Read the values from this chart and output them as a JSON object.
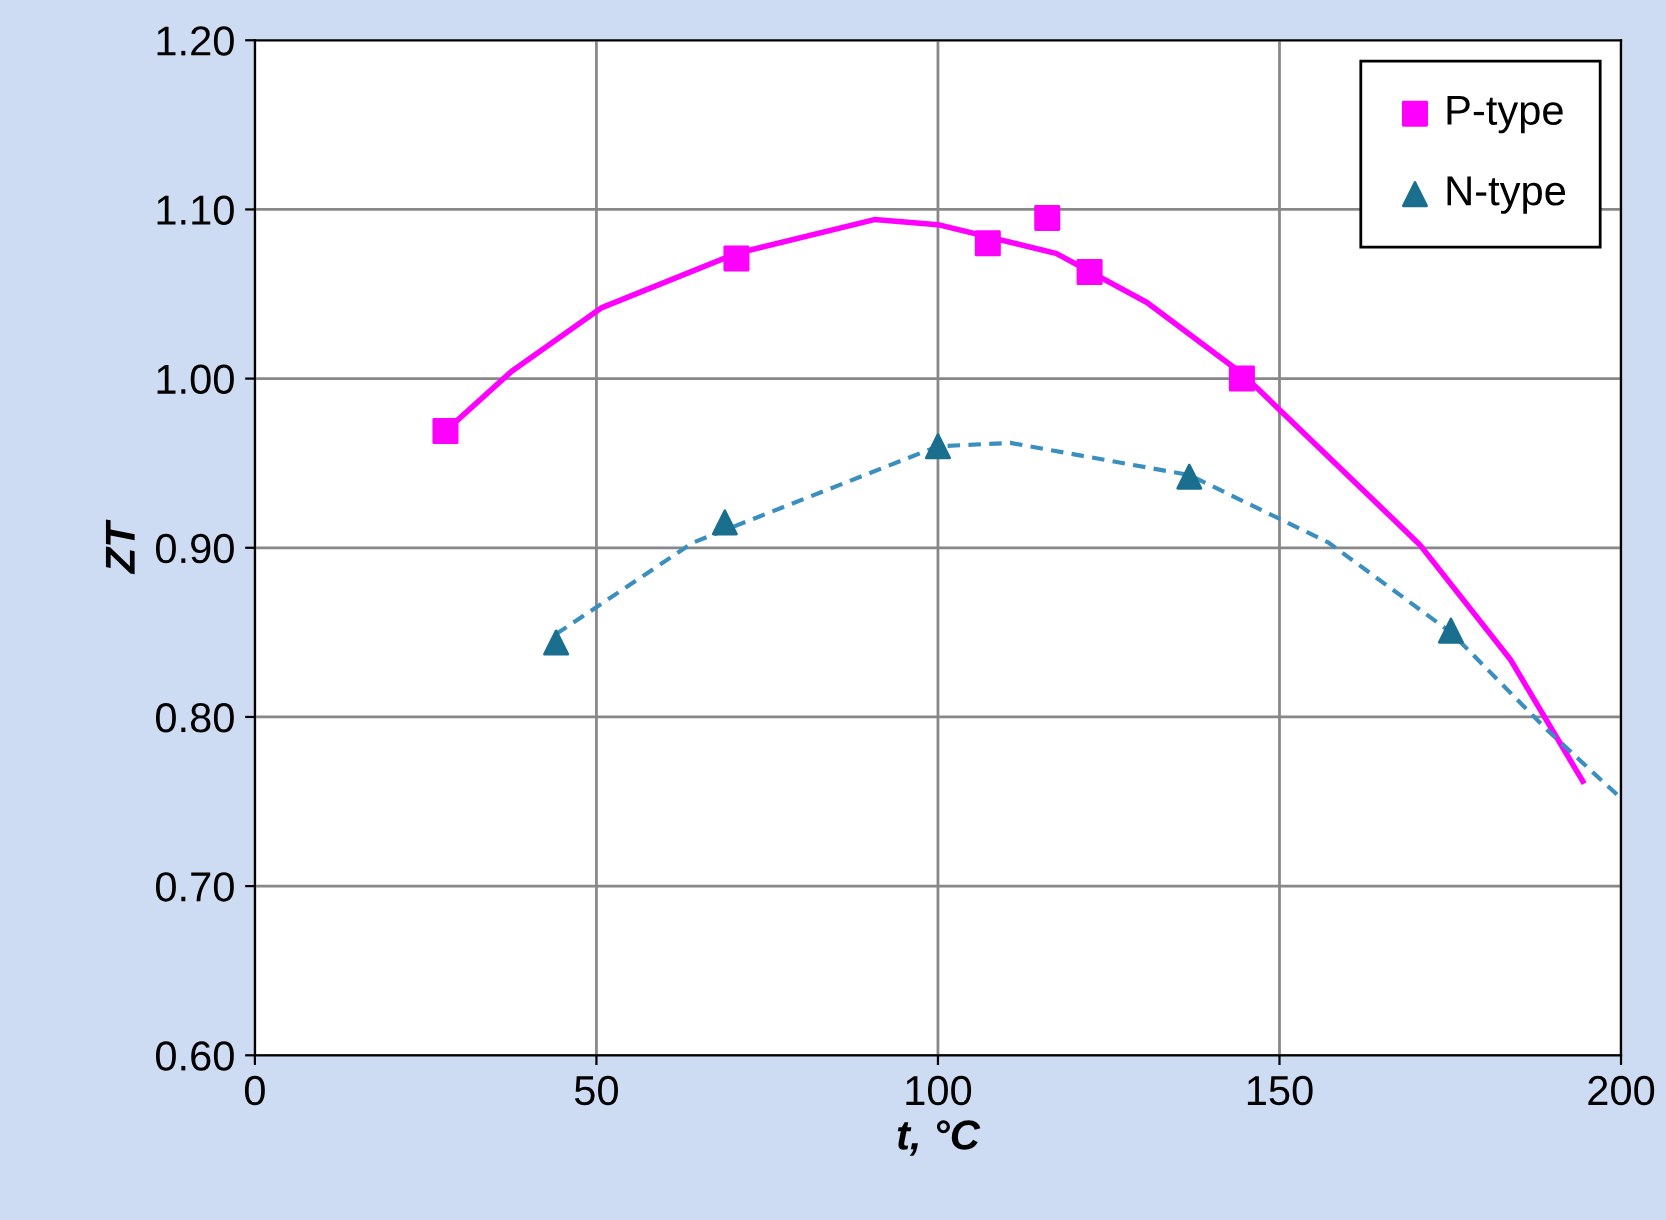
{
  "chart_data": {
    "type": "scatter",
    "xlabel": "t, °C",
    "ylabel": "ZT",
    "xlim": [
      0,
      200
    ],
    "ylim": [
      0.6,
      1.2
    ],
    "xticks": [
      0,
      50,
      100,
      150,
      200
    ],
    "yticks": [
      {
        "value": 0.6,
        "label": "0.60"
      },
      {
        "value": 0.7,
        "label": "0.70"
      },
      {
        "value": 0.8,
        "label": "0.80"
      },
      {
        "value": 0.9,
        "label": "0.90"
      },
      {
        "value": 1.0,
        "label": "1.00"
      },
      {
        "value": 1.1,
        "label": "1.10"
      },
      {
        "value": 1.2,
        "label": "1.20"
      }
    ],
    "grid": true,
    "legend": "top right",
    "series": [
      {
        "name": "P-type",
        "marker": "square",
        "color": "#ff00ff",
        "x": [
          27.9,
          70.5,
          107.3,
          116,
          122.2,
          144.5
        ],
        "values": [
          0.969,
          1.071,
          1.08,
          1.095,
          1.063,
          1.0
        ]
      },
      {
        "name": "N-type",
        "marker": "triangle",
        "color": "#1a6e8e",
        "x": [
          44.1,
          68.8,
          100,
          136.8,
          175.1
        ],
        "values": [
          0.844,
          0.915,
          0.96,
          0.942,
          0.851
        ]
      },
      {
        "type": "line",
        "marker": "none",
        "line_style": "solid",
        "color": "#ff00ff",
        "x": [
          27.9,
          37.5,
          50.8,
          70.5,
          90.7,
          100,
          117.3,
          130.6,
          144.5,
          170.5,
          183.8,
          194.4
        ],
        "values": [
          0.969,
          1.004,
          1.042,
          1.074,
          1.094,
          1.091,
          1.074,
          1.045,
          1.003,
          0.902,
          0.834,
          0.762
        ]
      },
      {
        "type": "line",
        "marker": "none",
        "line_style": "dashed",
        "color": "#3a8fbf",
        "x": [
          44.1,
          64.1,
          100,
          110.6,
          136.8,
          157.2,
          175.1,
          189,
          199.7
        ],
        "values": [
          0.849,
          0.903,
          0.96,
          0.962,
          0.943,
          0.903,
          0.85,
          0.793,
          0.753
        ]
      }
    ]
  }
}
